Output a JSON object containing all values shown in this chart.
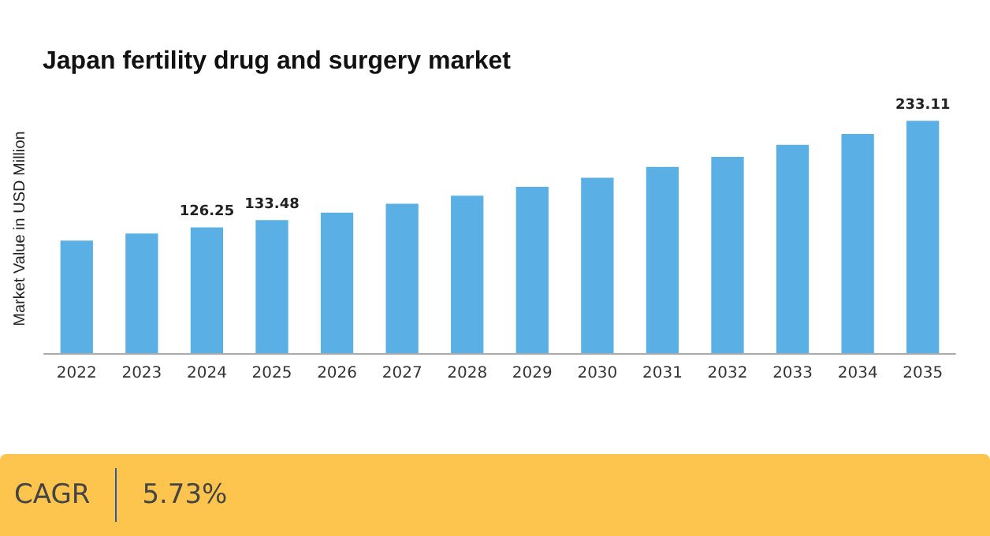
{
  "chart_data": {
    "type": "bar",
    "title": "Japan fertility drug and surgery market",
    "ylabel": "Market Value in USD Million",
    "categories": [
      "2022",
      "2023",
      "2024",
      "2025",
      "2026",
      "2027",
      "2028",
      "2029",
      "2030",
      "2031",
      "2032",
      "2033",
      "2034",
      "2035"
    ],
    "values": [
      113,
      120,
      126.25,
      133.48,
      141,
      150,
      158,
      167,
      176,
      187,
      197,
      209,
      220,
      233.11
    ],
    "value_labels": [
      null,
      null,
      "126.25",
      "133.48",
      null,
      null,
      null,
      null,
      null,
      null,
      null,
      null,
      null,
      "233.11"
    ],
    "color": "#5ab0e4",
    "annotations": [
      "CAGR",
      "5.73%"
    ]
  }
}
